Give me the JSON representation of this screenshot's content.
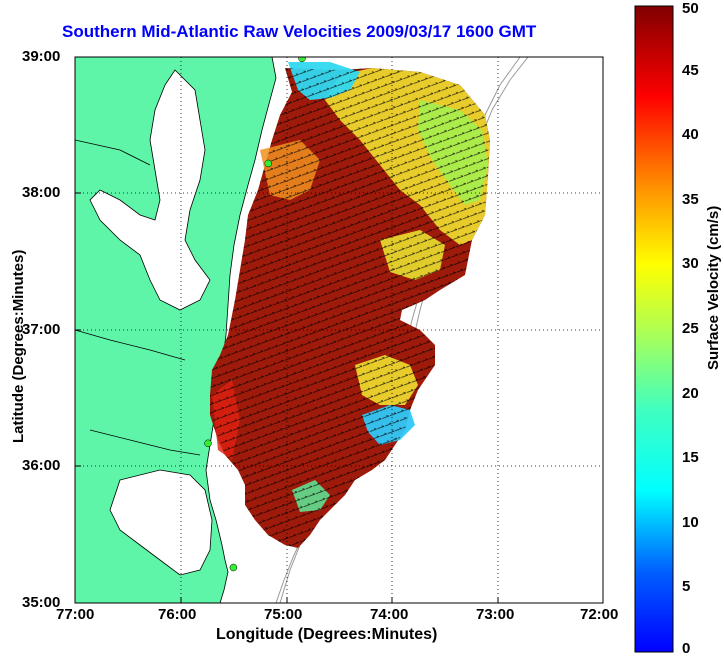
{
  "title": "Southern Mid-Atlantic Raw Velocities 2009/03/17 1600 GMT",
  "xlabel": "Longitude (Degrees:Minutes)",
  "ylabel": "Latitude (Degrees:Minutes)",
  "colorbar": {
    "label": "Surface Velocity (cm/s)",
    "ticks": [
      "0",
      "5",
      "10",
      "15",
      "20",
      "25",
      "30",
      "35",
      "40",
      "45",
      "50"
    ],
    "range": [
      0,
      50
    ],
    "colormap": "jet"
  },
  "x_ticks": [
    "77:00",
    "76:00",
    "75:00",
    "74:00",
    "73:00",
    "72:00"
  ],
  "y_ticks": [
    "39:00",
    "38:00",
    "37:00",
    "36:00",
    "35:00"
  ],
  "colors": {
    "land": "#5ef5a8",
    "coast": "#000000",
    "bathymetry": "#999999",
    "station": "#33ee33",
    "grid": "#000000"
  },
  "map_data": {
    "type": "velocity field (vector map)",
    "lon_range": [
      -77,
      -72
    ],
    "lat_range": [
      35,
      39
    ],
    "grid": "dotted",
    "speed_range_cm_s": [
      0,
      50
    ],
    "stations": [
      {
        "lon": -74.85,
        "lat": 38.99
      },
      {
        "lon": -75.17,
        "lat": 38.22
      },
      {
        "lon": -75.74,
        "lat": 36.17
      },
      {
        "lon": -75.5,
        "lat": 35.26
      }
    ]
  }
}
